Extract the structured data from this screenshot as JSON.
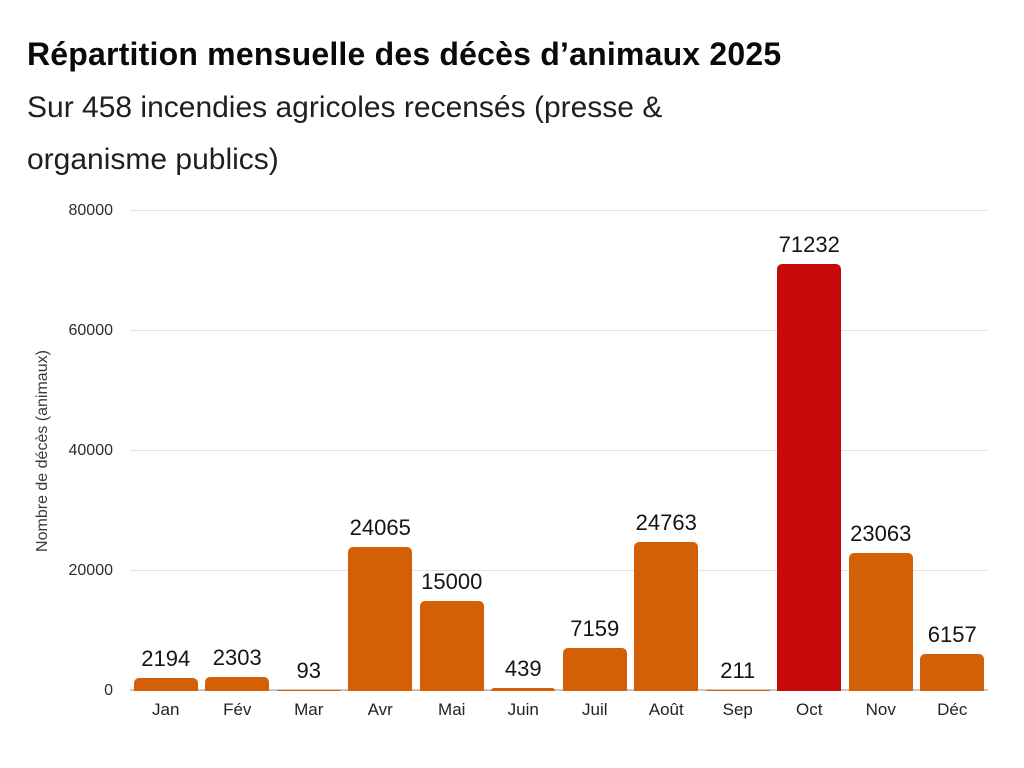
{
  "header": {
    "title": "Répartition mensuelle des décès d’animaux 2025",
    "subtitle": "Sur 458 incendies agricoles recensés (presse & organisme publics)"
  },
  "chart_data": {
    "type": "bar",
    "title": "Répartition mensuelle des décès d’animaux 2025",
    "subtitle": "Sur 458 incendies agricoles recensés (presse & organisme publics)",
    "categories": [
      "Jan",
      "Fév",
      "Mar",
      "Avr",
      "Mai",
      "Juin",
      "Juil",
      "Août",
      "Sep",
      "Oct",
      "Nov",
      "Déc"
    ],
    "values": [
      2194,
      2303,
      93,
      24065,
      15000,
      439,
      7159,
      24763,
      211,
      71232,
      23063,
      6157
    ],
    "value_labels_shown": true,
    "xlabel": "",
    "ylabel": "Nombre de décès (animaux)",
    "ylim": [
      0,
      80000
    ],
    "yticks": [
      0,
      20000,
      40000,
      60000,
      80000
    ],
    "grid": "horizontal",
    "legend": "none",
    "highlight_index": 9,
    "colors": {
      "bar": "#D35F06",
      "bar_highlight": "#C80909",
      "gridline": "#e3e3e3",
      "axis_line": "#c9c9c9",
      "title_text": "#0a0a0a",
      "subtitle_text": "#1f1f1f",
      "tick_text": "#2e2e2e",
      "value_text": "#141414",
      "background": "#ffffff"
    }
  }
}
